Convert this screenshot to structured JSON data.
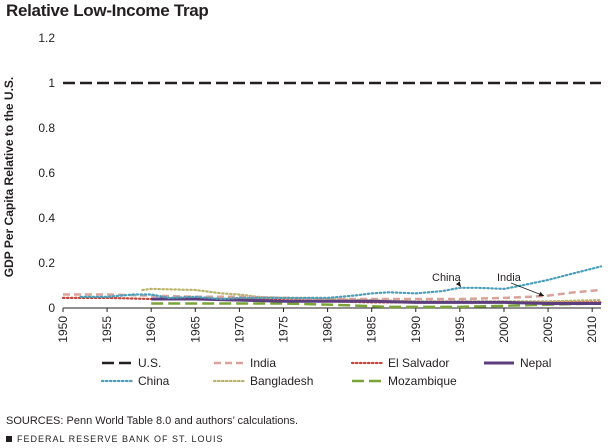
{
  "chart_data": {
    "type": "line",
    "title": "Relative Low-Income Trap",
    "xlabel": "",
    "ylabel": "GDP Per Capita Relative to the U.S.",
    "xlim": [
      1950,
      2011
    ],
    "ylim": [
      0,
      1.2
    ],
    "xticks": [
      1950,
      1955,
      1960,
      1965,
      1970,
      1975,
      1980,
      1985,
      1990,
      1995,
      2000,
      2005,
      2010
    ],
    "yticks": [
      0,
      0.2,
      0.4,
      0.6,
      0.8,
      1,
      1.2
    ],
    "ytick_labels": [
      "0",
      "0.2",
      "0.4",
      "0.6",
      "0.8",
      "1",
      "1.2"
    ],
    "grid": false,
    "legend_position": "bottom",
    "series": [
      {
        "name": "U.S.",
        "color": "#231f20",
        "style": "longdash",
        "x": [
          1950,
          2011
        ],
        "y": [
          1,
          1
        ]
      },
      {
        "name": "India",
        "color": "#d9a29a",
        "style": "dash",
        "x": [
          1950,
          1955,
          1960,
          1965,
          1970,
          1975,
          1980,
          1985,
          1990,
          1995,
          2000,
          2003,
          2005,
          2008,
          2011
        ],
        "y": [
          0.06,
          0.06,
          0.055,
          0.05,
          0.05,
          0.045,
          0.04,
          0.04,
          0.04,
          0.04,
          0.045,
          0.05,
          0.055,
          0.07,
          0.08
        ]
      },
      {
        "name": "El Salvador",
        "color": "#c4453b",
        "style": "dot",
        "x": [
          1950,
          1955,
          1960,
          1965,
          1970,
          1975,
          1980,
          1985,
          1990,
          1995,
          2000,
          2005,
          2011
        ],
        "y": [
          0.045,
          0.045,
          0.04,
          0.04,
          0.04,
          0.035,
          0.03,
          0.025,
          0.025,
          0.025,
          0.025,
          0.025,
          0.025
        ]
      },
      {
        "name": "Nepal",
        "color": "#5c3d7e",
        "style": "solid",
        "x": [
          1960,
          1965,
          1970,
          1975,
          1980,
          1985,
          1990,
          1995,
          2000,
          2005,
          2011
        ],
        "y": [
          0.04,
          0.04,
          0.035,
          0.03,
          0.03,
          0.03,
          0.025,
          0.025,
          0.025,
          0.02,
          0.02
        ]
      },
      {
        "name": "China",
        "color": "#4a9fb9",
        "style": "dot",
        "x": [
          1952,
          1955,
          1958,
          1960,
          1962,
          1965,
          1968,
          1970,
          1975,
          1978,
          1980,
          1983,
          1985,
          1987,
          1990,
          1993,
          1995,
          1997,
          2000,
          2002,
          2005,
          2008,
          2011
        ],
        "y": [
          0.05,
          0.05,
          0.06,
          0.06,
          0.045,
          0.05,
          0.04,
          0.045,
          0.045,
          0.045,
          0.045,
          0.055,
          0.065,
          0.07,
          0.065,
          0.075,
          0.09,
          0.09,
          0.085,
          0.1,
          0.125,
          0.155,
          0.185
        ]
      },
      {
        "name": "Bangladesh",
        "color": "#b8b46a",
        "style": "dot",
        "x": [
          1959,
          1960,
          1965,
          1968,
          1970,
          1972,
          1975,
          1980,
          1985,
          1990,
          1995,
          2000,
          2005,
          2011
        ],
        "y": [
          0.08,
          0.085,
          0.08,
          0.065,
          0.06,
          0.05,
          0.045,
          0.04,
          0.035,
          0.03,
          0.03,
          0.03,
          0.03,
          0.035
        ]
      },
      {
        "name": "Mozambique",
        "color": "#7aa43a",
        "style": "longdash",
        "x": [
          1960,
          1965,
          1970,
          1975,
          1980,
          1985,
          1987,
          1990,
          1995,
          2000,
          2005,
          2011
        ],
        "y": [
          0.02,
          0.02,
          0.02,
          0.02,
          0.015,
          0.008,
          0.005,
          0.005,
          0.005,
          0.01,
          0.015,
          0.02
        ]
      }
    ],
    "annotations": [
      {
        "text": "China",
        "x": 1995,
        "y": 0.09
      },
      {
        "text": "India",
        "x": 2004,
        "y": 0.045
      }
    ]
  },
  "sources": "SOURCES: Penn World Table 8.0 and authors’ calculations.",
  "footer": "FEDERAL RESERVE BANK OF ST. LOUIS"
}
